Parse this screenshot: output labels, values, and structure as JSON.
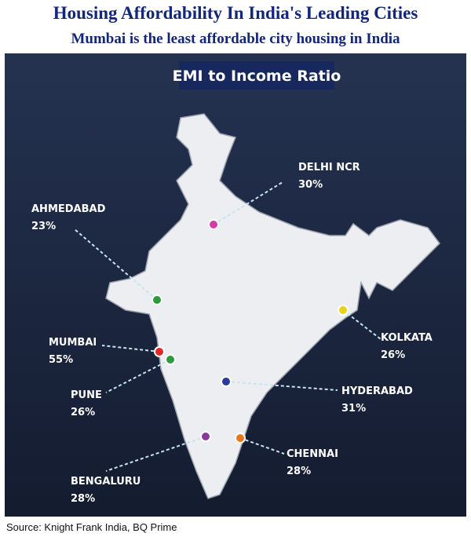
{
  "header": {
    "title": "Housing Affordability In India's Leading Cities",
    "subtitle": "Mumbai is the least affordable city housing in India"
  },
  "map": {
    "title": "EMI to Income Ratio",
    "cities": [
      {
        "name": "DELHI NCR",
        "value": 30,
        "value_label": "30%",
        "color": "#d63aa8"
      },
      {
        "name": "AHMEDABAD",
        "value": 23,
        "value_label": "23%",
        "color": "#2e9a3c"
      },
      {
        "name": "KOLKATA",
        "value": 26,
        "value_label": "26%",
        "color": "#e8d21a"
      },
      {
        "name": "MUMBAI",
        "value": 55,
        "value_label": "55%",
        "color": "#e02828"
      },
      {
        "name": "PUNE",
        "value": 26,
        "value_label": "26%",
        "color": "#2e9a3c"
      },
      {
        "name": "HYDERABAD",
        "value": 31,
        "value_label": "31%",
        "color": "#2a3a9a"
      },
      {
        "name": "BENGALURU",
        "value": 28,
        "value_label": "28%",
        "color": "#8a3a9a"
      },
      {
        "name": "CHENNAI",
        "value": 28,
        "value_label": "28%",
        "color": "#e8781a"
      }
    ]
  },
  "source": "Source:  Knight Frank India, BQ Prime"
}
